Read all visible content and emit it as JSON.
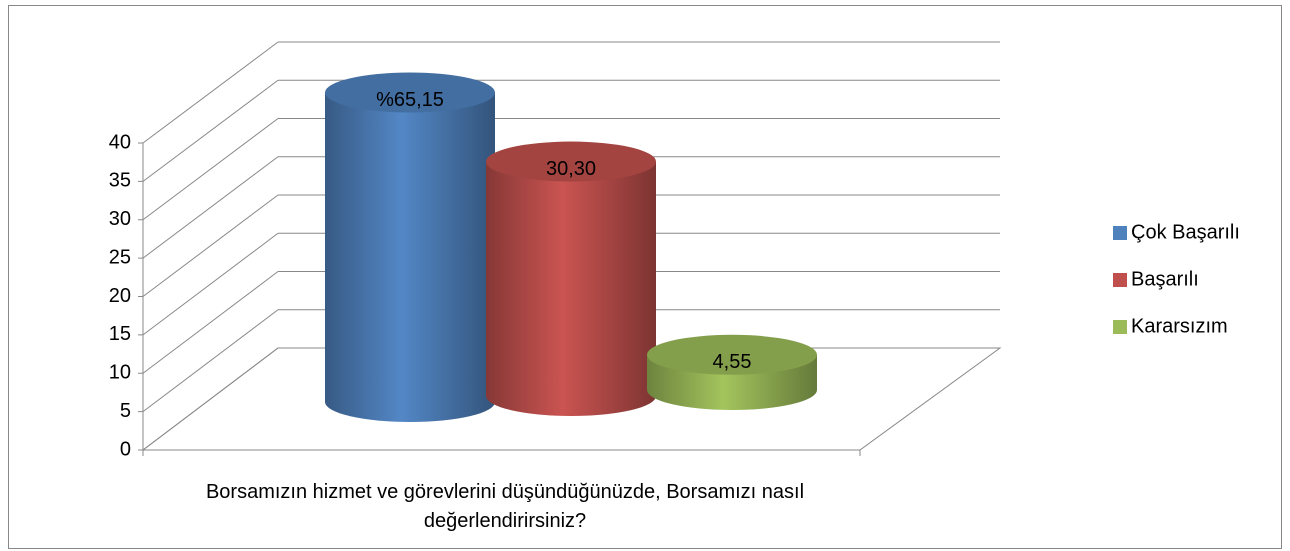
{
  "chart_data": {
    "type": "bar3d",
    "categories": [
      "Borsamızın hizmet ve görevlerini düşündüğünüzde, Borsamızı nasıl değerlendirirsiniz?"
    ],
    "series": [
      {
        "name": "Çok Başarılı",
        "color": "#4f81bd",
        "values": [
          65.15
        ],
        "value_labels": [
          "%65,15"
        ]
      },
      {
        "name": "Başarılı",
        "color": "#c0504d",
        "values": [
          30.3
        ],
        "value_labels": [
          "30,30"
        ]
      },
      {
        "name": "Kararsızım",
        "color": "#9bbb59",
        "values": [
          4.55
        ],
        "value_labels": [
          "4,55"
        ]
      }
    ],
    "ylim": [
      0,
      40
    ],
    "yticks": [
      0,
      5,
      10,
      15,
      20,
      25,
      30,
      35,
      40
    ],
    "grid": true,
    "legend": "right"
  }
}
